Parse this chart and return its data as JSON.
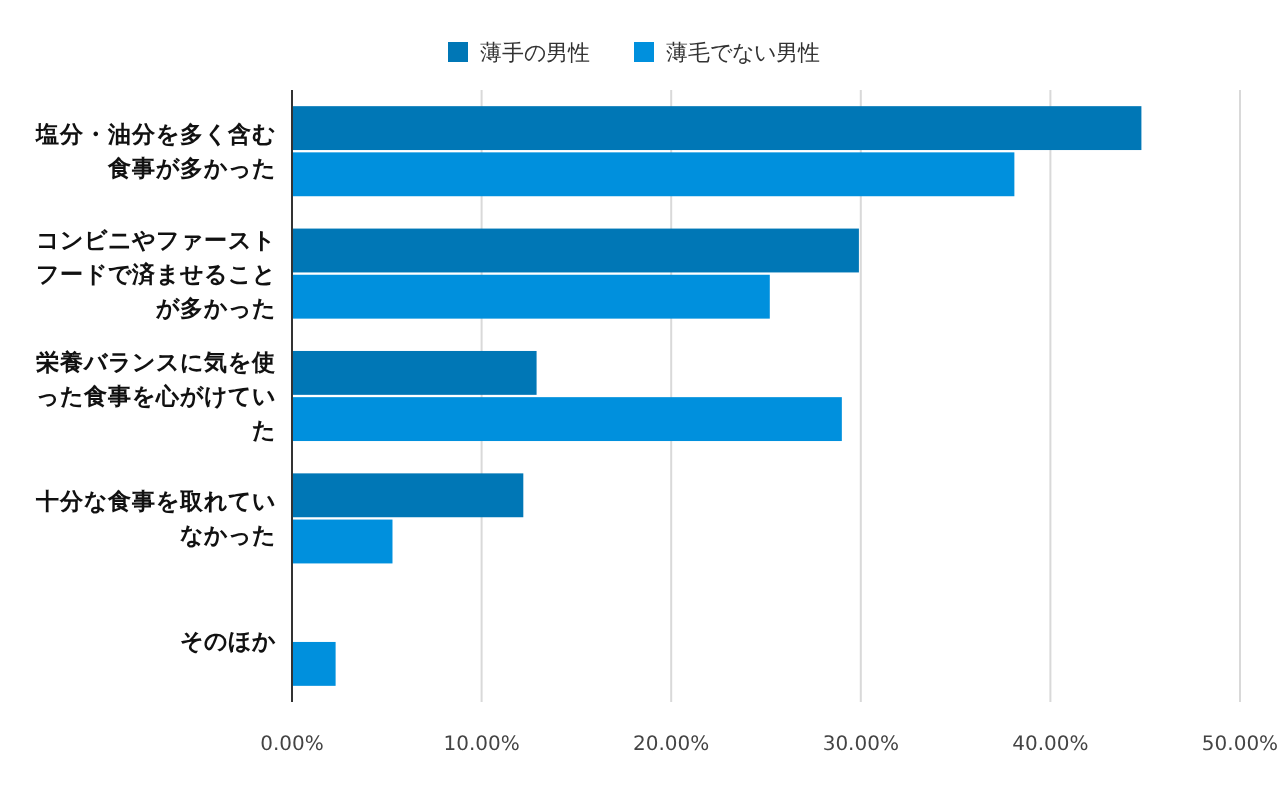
{
  "chart_data": {
    "type": "bar",
    "orientation": "horizontal",
    "categories": [
      "塩分・油分を多く含む食事が多かった",
      "コンビニやファーストフードで済ませることが多かった",
      "栄養バランスに気を使った食事を心がけていた",
      "十分な食事を取れていなかった",
      "そのほか"
    ],
    "series": [
      {
        "name": "薄手の男性",
        "color": "#0077b6",
        "values": [
          44.8,
          29.9,
          12.9,
          12.2,
          0
        ]
      },
      {
        "name": "薄毛でない男性",
        "color": "#0090dd",
        "values": [
          38.1,
          25.2,
          29.0,
          5.3,
          2.3
        ]
      }
    ],
    "xlim": [
      0,
      50
    ],
    "xticks": [
      {
        "value": 0,
        "label": "0.00%"
      },
      {
        "value": 10,
        "label": "10.00%"
      },
      {
        "value": 20,
        "label": "20.00%"
      },
      {
        "value": 30,
        "label": "30.00%"
      },
      {
        "value": 40,
        "label": "40.00%"
      },
      {
        "value": 50,
        "label": "50.00%"
      }
    ],
    "grid": "x",
    "legend": "top"
  }
}
